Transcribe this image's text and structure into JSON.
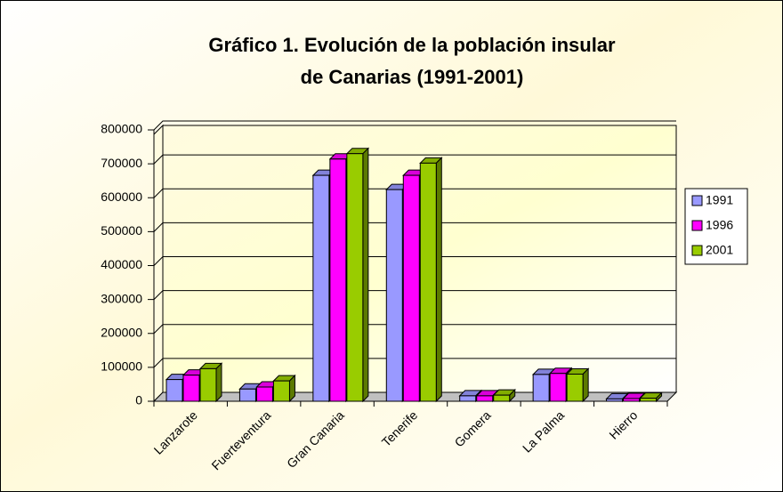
{
  "chart_data": {
    "type": "bar3d",
    "title": [
      "Gráfico 1. Evolución de la población insular",
      "de Canarias (1991-2001)"
    ],
    "categories": [
      "Lanzarote",
      "Fuerteventura",
      "Gran Canaria",
      "Tenerife",
      "Gomera",
      "La Palma",
      "Hierro"
    ],
    "series": [
      {
        "name": "1991",
        "color": "#9999ff",
        "values": [
          64000,
          36000,
          666000,
          624000,
          16000,
          79000,
          7000
        ]
      },
      {
        "name": "1996",
        "color": "#ff00ff",
        "values": [
          77000,
          42000,
          714000,
          666000,
          16000,
          82000,
          8000
        ]
      },
      {
        "name": "2001",
        "color": "#99cc00",
        "values": [
          96000,
          60000,
          730000,
          702000,
          18000,
          80000,
          9000
        ]
      }
    ],
    "ylim": [
      0,
      800000
    ],
    "yticks": [
      0,
      100000,
      200000,
      300000,
      400000,
      500000,
      600000,
      700000,
      800000
    ],
    "grid": true,
    "legend": "right"
  }
}
